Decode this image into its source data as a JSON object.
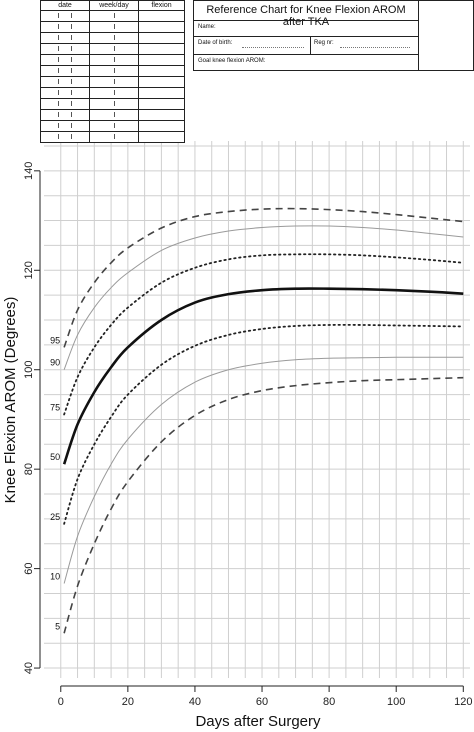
{
  "form": {
    "headers": [
      "date",
      "week/day",
      "flexion"
    ],
    "row_count": 12
  },
  "ref_box": {
    "title": "Reference Chart for Knee Flexion AROM after TKA",
    "name_label": "Name:",
    "dob_label": "Date of birth:",
    "reg_label": "Reg nr:",
    "goal_label": "Goal knee flexion AROM:"
  },
  "chart_data": {
    "type": "line",
    "title": "",
    "xlabel": "Days after Surgery",
    "ylabel": "Knee Flexion AROM (Degrees)",
    "xlim": [
      -5,
      122
    ],
    "ylim": [
      38,
      146
    ],
    "xticks": [
      0,
      20,
      40,
      60,
      80,
      100,
      120
    ],
    "yticks": [
      40,
      60,
      80,
      100,
      120,
      140
    ],
    "grid": true,
    "series": [
      {
        "name": "95",
        "style": "dashed",
        "x": [
          1,
          5,
          10,
          15,
          20,
          30,
          40,
          50,
          60,
          70,
          80,
          90,
          100,
          110,
          120
        ],
        "y": [
          104.5,
          112,
          117.5,
          121.5,
          124.5,
          128.5,
          130.8,
          131.8,
          132.3,
          132.4,
          132.2,
          131.8,
          131.2,
          130.5,
          129.8
        ]
      },
      {
        "name": "90",
        "style": "thin",
        "x": [
          1,
          5,
          10,
          15,
          20,
          30,
          40,
          50,
          60,
          70,
          80,
          90,
          100,
          110,
          120
        ],
        "y": [
          100,
          107,
          112.5,
          116.5,
          119.5,
          124,
          126.5,
          127.9,
          128.6,
          128.9,
          128.9,
          128.6,
          128.1,
          127.4,
          126.7
        ]
      },
      {
        "name": "75",
        "style": "dotted",
        "x": [
          1,
          5,
          10,
          15,
          20,
          30,
          40,
          50,
          60,
          70,
          80,
          90,
          100,
          110,
          120
        ],
        "y": [
          91,
          98.5,
          104.5,
          109,
          112.5,
          117.5,
          120.5,
          122.2,
          123,
          123.2,
          123.2,
          123,
          122.6,
          122.1,
          121.5
        ]
      },
      {
        "name": "50",
        "style": "bold",
        "x": [
          1,
          5,
          10,
          15,
          20,
          30,
          40,
          50,
          60,
          70,
          80,
          90,
          100,
          110,
          120
        ],
        "y": [
          81,
          89,
          95.5,
          100.5,
          104.5,
          110,
          113.5,
          115.2,
          116,
          116.3,
          116.3,
          116.2,
          116,
          115.7,
          115.3
        ]
      },
      {
        "name": "25",
        "style": "dotted",
        "x": [
          1,
          5,
          10,
          15,
          20,
          30,
          40,
          50,
          60,
          70,
          80,
          90,
          100,
          110,
          120
        ],
        "y": [
          69,
          78,
          85,
          90.5,
          95,
          101,
          104.8,
          107,
          108.2,
          108.8,
          109,
          109,
          108.9,
          108.8,
          108.7
        ]
      },
      {
        "name": "10",
        "style": "thin",
        "x": [
          1,
          5,
          10,
          15,
          20,
          30,
          40,
          50,
          60,
          70,
          80,
          90,
          100,
          110,
          120
        ],
        "y": [
          57,
          66.5,
          74.5,
          81,
          86,
          93,
          97.5,
          100,
          101.3,
          102,
          102.3,
          102.4,
          102.5,
          102.5,
          102.5
        ]
      },
      {
        "name": "5",
        "style": "dashed",
        "x": [
          1,
          5,
          10,
          15,
          20,
          30,
          40,
          50,
          60,
          70,
          80,
          90,
          100,
          110,
          120
        ],
        "y": [
          47,
          56.5,
          65,
          72,
          77.5,
          85.5,
          90.8,
          94,
          95.8,
          96.8,
          97.4,
          97.8,
          98,
          98.2,
          98.4
        ]
      }
    ]
  }
}
